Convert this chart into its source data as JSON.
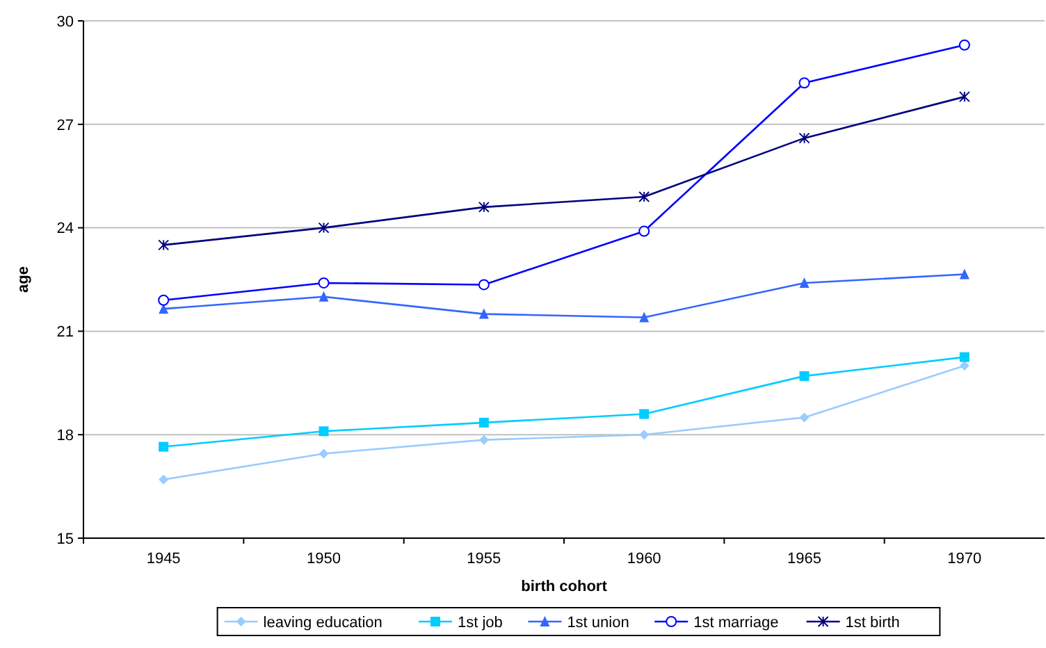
{
  "chart_data": {
    "type": "line",
    "xlabel": "birth cohort",
    "ylabel": "age",
    "categories": [
      "1945",
      "1950",
      "1955",
      "1960",
      "1965",
      "1970"
    ],
    "ylim": [
      15,
      30
    ],
    "yticks": [
      15,
      18,
      21,
      24,
      27,
      30
    ],
    "grid": "y",
    "legend": "bottom",
    "series": [
      {
        "name": "leaving education",
        "color": "#99ccff",
        "marker": "diamond",
        "values": [
          16.7,
          17.45,
          17.85,
          18.0,
          18.5,
          20.0
        ]
      },
      {
        "name": "1st job",
        "color": "#00ccff",
        "marker": "square",
        "values": [
          17.65,
          18.1,
          18.35,
          18.6,
          19.7,
          20.25
        ]
      },
      {
        "name": "1st union",
        "color": "#3366ff",
        "marker": "triangle",
        "values": [
          21.65,
          22.0,
          21.5,
          21.4,
          22.4,
          22.65
        ]
      },
      {
        "name": "1st marriage",
        "color": "#0000ff",
        "marker": "circle",
        "values": [
          21.9,
          22.4,
          22.35,
          23.9,
          28.2,
          29.3
        ]
      },
      {
        "name": "1st birth",
        "color": "#000080",
        "marker": "cross",
        "values": [
          23.5,
          24.0,
          24.6,
          24.9,
          26.6,
          27.8
        ]
      }
    ]
  }
}
